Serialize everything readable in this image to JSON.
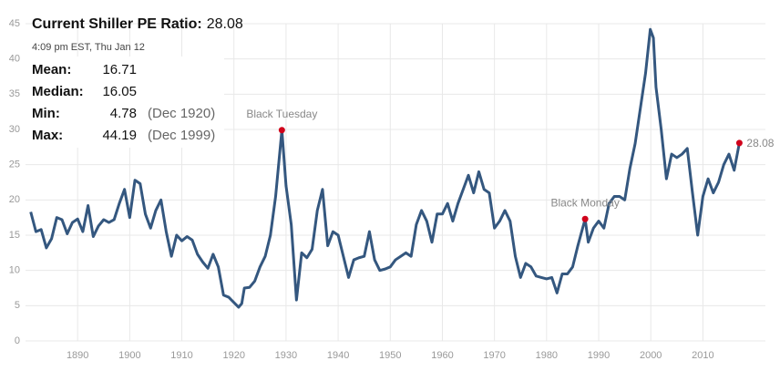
{
  "chart_data": {
    "type": "line",
    "title": "Current Shiller PE Ratio:",
    "current_value": 28.08,
    "timestamp": "4:09 pm EST, Thu Jan 12",
    "stats": [
      {
        "label": "Mean:",
        "value": 16.71
      },
      {
        "label": "Median:",
        "value": 16.05
      },
      {
        "label": "Min:",
        "value": 4.78,
        "date": "(Dec 1920)"
      },
      {
        "label": "Max:",
        "value": 44.19,
        "date": "(Dec 1999)"
      }
    ],
    "x": [
      1881,
      1882,
      1883,
      1884,
      1885,
      1886,
      1887,
      1888,
      1889,
      1890,
      1891,
      1892,
      1893,
      1894,
      1895,
      1896,
      1897,
      1898,
      1899,
      1900,
      1901,
      1902,
      1903,
      1904,
      1905,
      1906,
      1907,
      1908,
      1909,
      1910,
      1911,
      1912,
      1913,
      1914,
      1915,
      1916,
      1917,
      1918,
      1919,
      1920.9,
      1921.5,
      1922,
      1923,
      1924,
      1925,
      1926,
      1927,
      1928,
      1929.2,
      1930,
      1931,
      1932,
      1933,
      1934,
      1935,
      1936,
      1937,
      1938,
      1939,
      1940,
      1941,
      1942,
      1943,
      1944,
      1945,
      1946,
      1947,
      1948,
      1949,
      1950,
      1951,
      1952,
      1953,
      1954,
      1955,
      1956,
      1957,
      1958,
      1959,
      1960,
      1961,
      1962,
      1963,
      1964,
      1965,
      1966,
      1967,
      1968,
      1969,
      1970,
      1971,
      1972,
      1973,
      1974,
      1975,
      1976,
      1977,
      1978,
      1979,
      1980,
      1981,
      1982,
      1983,
      1984,
      1985,
      1986,
      1987.4,
      1988,
      1989,
      1990,
      1991,
      1992,
      1993,
      1994,
      1995,
      1996,
      1997,
      1998,
      1999,
      1999.9,
      2000.5,
      2001,
      2002,
      2003,
      2004,
      2005,
      2006,
      2007,
      2008,
      2009,
      2010,
      2011,
      2012,
      2013,
      2014,
      2015,
      2016,
      2017
    ],
    "values": [
      18.3,
      15.5,
      15.8,
      13.2,
      14.5,
      17.5,
      17.2,
      15.2,
      16.8,
      17.3,
      15.5,
      19.2,
      14.8,
      16.3,
      17.2,
      16.8,
      17.2,
      19.5,
      21.5,
      17.5,
      22.8,
      22.3,
      18.0,
      16.0,
      18.5,
      20.0,
      15.5,
      12.0,
      15.0,
      14.2,
      14.8,
      14.3,
      12.3,
      11.2,
      10.3,
      12.3,
      10.5,
      6.5,
      6.2,
      4.78,
      5.3,
      7.5,
      7.6,
      8.5,
      10.5,
      12.0,
      15.0,
      20.5,
      29.9,
      22.0,
      16.5,
      5.8,
      12.5,
      11.8,
      13.0,
      18.5,
      21.5,
      13.5,
      15.5,
      15.0,
      12.0,
      9.0,
      11.5,
      11.8,
      12.0,
      15.5,
      11.5,
      10.0,
      10.2,
      10.5,
      11.5,
      12.0,
      12.5,
      12.0,
      16.5,
      18.5,
      17.0,
      14.0,
      18.0,
      18.0,
      19.5,
      17.0,
      19.5,
      21.5,
      23.5,
      21.0,
      24.0,
      21.5,
      21.0,
      16.0,
      17.0,
      18.5,
      17.0,
      12.0,
      9.0,
      11.0,
      10.5,
      9.2,
      9.0,
      8.8,
      9.0,
      6.8,
      9.5,
      9.5,
      10.5,
      13.5,
      17.3,
      14.0,
      16.0,
      17.0,
      16.0,
      19.5,
      20.5,
      20.5,
      20.0,
      24.5,
      28.0,
      33.0,
      38.0,
      44.19,
      43.0,
      36.0,
      30.0,
      23.0,
      26.5,
      26.0,
      26.5,
      27.3,
      21.0,
      15.0,
      20.5,
      23.0,
      21.0,
      22.5,
      25.0,
      26.5,
      24.2,
      28.08
    ],
    "color": "#34577f",
    "point_color": "#d0021b",
    "annotations": [
      {
        "text": "Black Tuesday",
        "x": 1929.2,
        "y": 29.9
      },
      {
        "text": "Black Monday",
        "x": 1987.4,
        "y": 17.3
      }
    ],
    "xlim": [
      1880,
      2022
    ],
    "ylim": [
      0,
      45
    ],
    "xticks": [
      1890,
      1900,
      1910,
      1920,
      1930,
      1940,
      1950,
      1960,
      1970,
      1980,
      1990,
      2000,
      2010
    ],
    "yticks": [
      0,
      5,
      10,
      15,
      20,
      25,
      30,
      35,
      40,
      45
    ],
    "grid": true
  }
}
